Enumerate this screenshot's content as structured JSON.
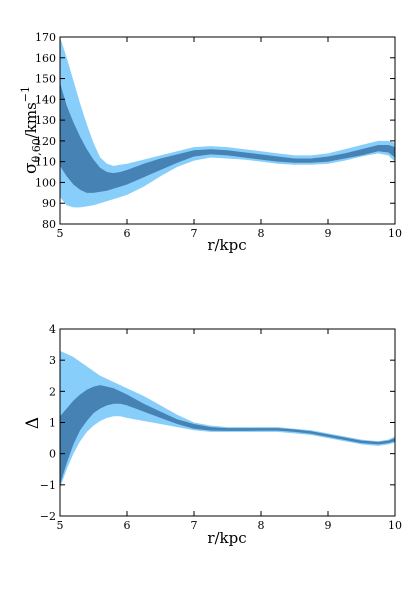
{
  "chart_data": [
    {
      "type": "area",
      "title": "",
      "xlabel": "r/kpc",
      "ylabel_main": "σ",
      "ylabel_sub": "θ,60",
      "ylabel_rest": "/kms",
      "ylabel_sup": "−1",
      "xlim": [
        5,
        10
      ],
      "ylim": [
        80,
        170
      ],
      "x_ticks": [
        "5",
        "6",
        "7",
        "8",
        "9",
        "10"
      ],
      "y_ticks": [
        "80",
        "90",
        "100",
        "110",
        "120",
        "130",
        "140",
        "150",
        "160",
        "170"
      ],
      "colors": {
        "outer_band": "#87cefa",
        "inner_band": "#4682b4"
      },
      "x": [
        5.0,
        5.1,
        5.2,
        5.3,
        5.4,
        5.5,
        5.6,
        5.7,
        5.8,
        5.9,
        6.0,
        6.25,
        6.5,
        6.75,
        7.0,
        7.25,
        7.5,
        7.75,
        8.0,
        8.25,
        8.5,
        8.75,
        9.0,
        9.25,
        9.5,
        9.75,
        9.9,
        10.0
      ],
      "outer_upper": [
        170,
        160,
        149,
        138,
        128,
        119,
        112,
        109,
        108,
        108.5,
        109,
        111,
        113,
        115,
        117,
        117.5,
        117,
        116,
        115,
        114,
        113,
        113,
        114,
        116,
        118,
        120,
        120,
        119
      ],
      "outer_lower": [
        93,
        89,
        88,
        88,
        88.5,
        89,
        90,
        91,
        92,
        93,
        94,
        98,
        103,
        107.5,
        110.5,
        112,
        111.5,
        111,
        110,
        109,
        108.5,
        108.5,
        109,
        110.5,
        112.5,
        114,
        113,
        110
      ],
      "inner_upper": [
        148,
        137,
        129,
        122,
        116,
        111,
        107,
        105,
        104.5,
        105,
        106,
        109,
        111.5,
        113.5,
        115.5,
        116,
        115.5,
        114.5,
        113.5,
        112.5,
        111.5,
        111.5,
        112.5,
        114,
        116,
        118,
        118,
        117
      ],
      "inner_lower": [
        108,
        103,
        99,
        96.5,
        95,
        95,
        95.5,
        96,
        97,
        98,
        99,
        102.5,
        106,
        109.5,
        112.5,
        113.5,
        113,
        112,
        111,
        110,
        109.5,
        109.5,
        110,
        111.5,
        113,
        115,
        114.5,
        112
      ]
    },
    {
      "type": "area",
      "title": "",
      "xlabel": "r/kpc",
      "ylabel": "Δ",
      "xlim": [
        5,
        10
      ],
      "ylim": [
        -2,
        4
      ],
      "x_ticks": [
        "5",
        "6",
        "7",
        "8",
        "9",
        "10"
      ],
      "y_ticks": [
        "−2",
        "−1",
        "0",
        "1",
        "2",
        "3",
        "4"
      ],
      "colors": {
        "outer_band": "#87cefa",
        "inner_band": "#4682b4"
      },
      "x": [
        5.0,
        5.1,
        5.2,
        5.3,
        5.4,
        5.5,
        5.6,
        5.7,
        5.8,
        5.9,
        6.0,
        6.25,
        6.5,
        6.75,
        7.0,
        7.25,
        7.5,
        7.75,
        8.0,
        8.25,
        8.5,
        8.75,
        9.0,
        9.25,
        9.5,
        9.75,
        9.9,
        10.0
      ],
      "outer_upper": [
        3.3,
        3.2,
        3.1,
        2.95,
        2.8,
        2.65,
        2.5,
        2.4,
        2.3,
        2.2,
        2.1,
        1.85,
        1.55,
        1.25,
        1.0,
        0.9,
        0.85,
        0.85,
        0.85,
        0.85,
        0.8,
        0.75,
        0.65,
        0.55,
        0.45,
        0.4,
        0.45,
        0.55
      ],
      "outer_lower": [
        -1.1,
        -0.5,
        0.0,
        0.4,
        0.7,
        0.9,
        1.05,
        1.15,
        1.2,
        1.2,
        1.15,
        1.05,
        0.95,
        0.85,
        0.75,
        0.7,
        0.7,
        0.7,
        0.7,
        0.7,
        0.65,
        0.6,
        0.5,
        0.4,
        0.3,
        0.25,
        0.3,
        0.35
      ],
      "inner_upper": [
        1.2,
        1.45,
        1.7,
        1.9,
        2.05,
        2.15,
        2.2,
        2.15,
        2.1,
        2.0,
        1.9,
        1.6,
        1.35,
        1.1,
        0.95,
        0.85,
        0.82,
        0.82,
        0.82,
        0.82,
        0.78,
        0.72,
        0.62,
        0.52,
        0.42,
        0.38,
        0.42,
        0.5
      ],
      "inner_lower": [
        -1.0,
        -0.3,
        0.3,
        0.75,
        1.05,
        1.3,
        1.45,
        1.55,
        1.6,
        1.6,
        1.55,
        1.35,
        1.15,
        0.95,
        0.8,
        0.74,
        0.73,
        0.73,
        0.74,
        0.74,
        0.7,
        0.64,
        0.54,
        0.44,
        0.34,
        0.3,
        0.34,
        0.4
      ]
    }
  ]
}
